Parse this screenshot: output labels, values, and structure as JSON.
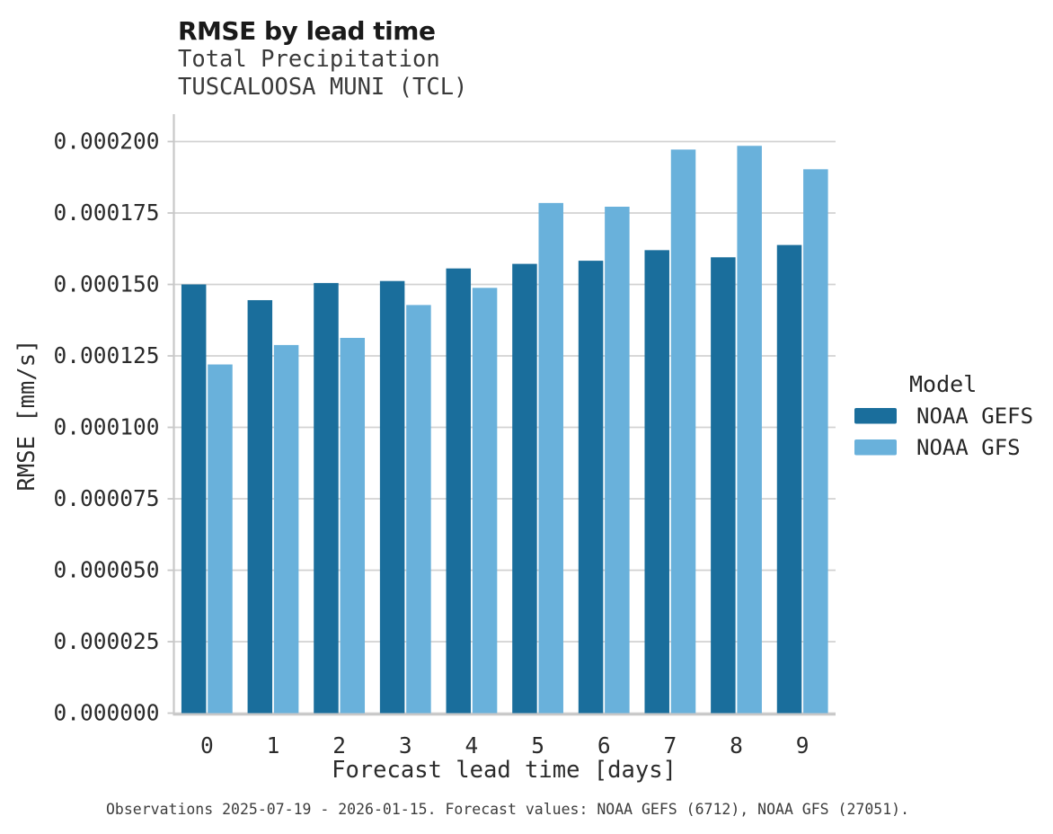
{
  "title": "RMSE by lead time",
  "subtitle": {
    "line1": "Total Precipitation",
    "line2": "TUSCALOOSA MUNI (TCL)"
  },
  "caption": "Observations 2025-07-19 - 2026-01-15. Forecast values: NOAA GEFS (6712), NOAA GFS (27051).",
  "colors": {
    "gefs_bar": "#1a6e9c",
    "gfs_bar": "#69b1db",
    "gridline": "#d2d2d2",
    "spine": "#c8c8c8",
    "text": "#262626"
  },
  "chart_data": {
    "type": "bar",
    "categories": [
      "0",
      "1",
      "2",
      "3",
      "4",
      "5",
      "6",
      "7",
      "8",
      "9"
    ],
    "series": [
      {
        "name": "NOAA GEFS",
        "color": "#1a6e9c",
        "values": [
          0.00015,
          0.0001445,
          0.0001505,
          0.0001512,
          0.0001556,
          0.0001572,
          0.0001583,
          0.000162,
          0.0001595,
          0.0001638
        ]
      },
      {
        "name": "NOAA GFS",
        "color": "#69b1db",
        "values": [
          0.000122,
          0.0001288,
          0.0001313,
          0.0001428,
          0.0001488,
          0.0001785,
          0.0001772,
          0.0001972,
          0.0001985,
          0.0001903
        ]
      }
    ],
    "title": "RMSE by lead time",
    "subtitle": "Total Precipitation — TUSCALOOSA MUNI (TCL)",
    "xlabel": "Forecast lead time [days]",
    "ylabel": "RMSE [mm/s]",
    "ylim": [
      0,
      0.00021
    ],
    "y_ticks": [
      "0.000000",
      "0.000025",
      "0.000050",
      "0.000075",
      "0.000100",
      "0.000125",
      "0.000150",
      "0.000175",
      "0.000200"
    ],
    "grid": "horizontal",
    "legend_title": "Model",
    "legend_position": "right"
  }
}
